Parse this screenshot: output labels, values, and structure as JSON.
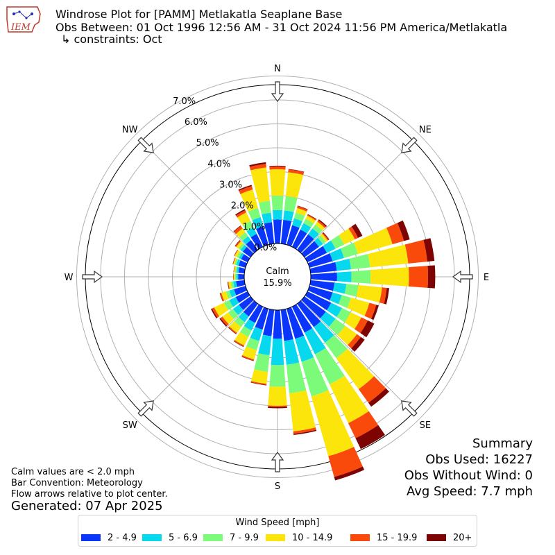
{
  "header": {
    "title": "Windrose Plot for [PAMM] Metlakatla Seaplane Base",
    "obs_between": "Obs Between: 01 Oct 1996 12:56 AM - 31 Oct 2024 11:56 PM America/Metlakatla",
    "constraints": "↳ constraints: Oct",
    "logo_text": "IEM"
  },
  "notes": {
    "calm_def": "Calm values are < 2.0 mph",
    "bar_convention": "Bar Convention: Meteorology",
    "flow_arrows": "Flow arrows relative to plot center.",
    "generated": "Generated: 07 Apr 2025"
  },
  "summary": {
    "title": "Summary",
    "obs_used": "Obs Used: 16227",
    "obs_without_wind": "Obs Without Wind: 0",
    "avg_speed": "Avg Speed: 7.7 mph"
  },
  "legend": {
    "title": "Wind Speed [mph]",
    "items": [
      {
        "label": "2 - 4.9",
        "color": "#0a35fa"
      },
      {
        "label": "5 - 6.9",
        "color": "#06d8ee"
      },
      {
        "label": "7 - 9.9",
        "color": "#7cfb7a"
      },
      {
        "label": "10 - 14.9",
        "color": "#fbe50a"
      },
      {
        "label": "15 - 19.9",
        "color": "#fa4a0b"
      },
      {
        "label": "20+",
        "color": "#7e0403"
      }
    ]
  },
  "chart_data": {
    "type": "windrose",
    "calm": {
      "label": "Calm",
      "value": "15.9%"
    },
    "radial_ticks": [
      "0.0%",
      "1.0%",
      "2.0%",
      "3.0%",
      "4.0%",
      "5.0%",
      "6.0%",
      "7.0%"
    ],
    "radial_max": 7.9,
    "grid": true,
    "directions": [
      {
        "label": "N",
        "deg": 0
      },
      {
        "label": "NE",
        "deg": 45
      },
      {
        "label": "E",
        "deg": 90
      },
      {
        "label": "SE",
        "deg": 135
      },
      {
        "label": "S",
        "deg": 180
      },
      {
        "label": "SW",
        "deg": 225
      },
      {
        "label": "W",
        "deg": 270
      },
      {
        "label": "NW",
        "deg": 315
      }
    ],
    "bin_width_deg": 10,
    "speed_bins": [
      "2 - 4.9",
      "5 - 6.9",
      "7 - 9.9",
      "10 - 14.9",
      "15 - 19.9",
      "20+"
    ],
    "colors": [
      "#0a35fa",
      "#06d8ee",
      "#7cfb7a",
      "#fbe50a",
      "#fa4a0b",
      "#7e0403"
    ],
    "bars": [
      {
        "dir": 0,
        "values": [
          1.0,
          0.4,
          0.6,
          1.1,
          0.12,
          0.03
        ]
      },
      {
        "dir": 10,
        "values": [
          1.0,
          0.4,
          0.6,
          1.0,
          0.12,
          0.02
        ]
      },
      {
        "dir": 20,
        "values": [
          0.85,
          0.3,
          0.25,
          0.2,
          0.08,
          0.02
        ]
      },
      {
        "dir": 30,
        "values": [
          0.8,
          0.3,
          0.2,
          0.15,
          0.05,
          0.02
        ]
      },
      {
        "dir": 40,
        "values": [
          0.8,
          0.3,
          0.2,
          0.15,
          0.07,
          0.05
        ]
      },
      {
        "dir": 50,
        "values": [
          0.75,
          0.2,
          0.15,
          0.1,
          0.05,
          0.03
        ]
      },
      {
        "dir": 60,
        "values": [
          0.9,
          0.4,
          0.4,
          0.5,
          0.15,
          0.2
        ]
      },
      {
        "dir": 70,
        "values": [
          1.0,
          0.5,
          0.6,
          1.5,
          0.5,
          0.25
        ]
      },
      {
        "dir": 80,
        "values": [
          1.1,
          0.6,
          0.8,
          1.6,
          0.8,
          0.3
        ]
      },
      {
        "dir": 90,
        "values": [
          1.1,
          0.6,
          0.8,
          1.6,
          0.8,
          0.3
        ]
      },
      {
        "dir": 100,
        "values": [
          1.0,
          0.5,
          0.5,
          1.0,
          0.2,
          0.1
        ]
      },
      {
        "dir": 110,
        "values": [
          1.0,
          0.4,
          0.4,
          0.8,
          0.3,
          0.1
        ]
      },
      {
        "dir": 120,
        "values": [
          1.1,
          0.5,
          0.4,
          0.5,
          0.3,
          0.3
        ]
      },
      {
        "dir": 130,
        "values": [
          1.1,
          0.5,
          0.5,
          0.6,
          0.2,
          0.2
        ]
      },
      {
        "dir": 140,
        "values": [
          1.2,
          0.8,
          0.8,
          1.6,
          0.7,
          0.2
        ]
      },
      {
        "dir": 150,
        "values": [
          1.2,
          1.0,
          1.4,
          1.8,
          0.7,
          0.5
        ]
      },
      {
        "dir": 160,
        "values": [
          1.3,
          1.0,
          1.5,
          2.6,
          0.9,
          0.15
        ]
      },
      {
        "dir": 170,
        "values": [
          1.3,
          1.0,
          1.2,
          1.6,
          0.1,
          0.05
        ]
      },
      {
        "dir": 180,
        "values": [
          1.2,
          1.1,
          0.9,
          0.8,
          0.05,
          0.05
        ]
      },
      {
        "dir": 190,
        "values": [
          1.1,
          0.8,
          0.7,
          0.5,
          0.05,
          0.02
        ]
      },
      {
        "dir": 200,
        "values": [
          0.9,
          0.5,
          0.4,
          0.4,
          0.05,
          0.02
        ]
      },
      {
        "dir": 210,
        "values": [
          0.75,
          0.35,
          0.3,
          0.4,
          0.05,
          0.02
        ]
      },
      {
        "dir": 220,
        "values": [
          0.65,
          0.3,
          0.25,
          0.3,
          0.05,
          0.02
        ]
      },
      {
        "dir": 230,
        "values": [
          0.6,
          0.3,
          0.25,
          0.3,
          0.1,
          0.05
        ]
      },
      {
        "dir": 240,
        "values": [
          0.55,
          0.3,
          0.25,
          0.45,
          0.1,
          0.05
        ]
      },
      {
        "dir": 250,
        "values": [
          0.5,
          0.2,
          0.15,
          0.2,
          0.05,
          0.02
        ]
      },
      {
        "dir": 260,
        "values": [
          0.35,
          0.12,
          0.1,
          0.1,
          0.02,
          0.02
        ]
      },
      {
        "dir": 270,
        "values": [
          0.25,
          0.08,
          0.06,
          0.05,
          0.01,
          0.01
        ]
      },
      {
        "dir": 280,
        "values": [
          0.25,
          0.08,
          0.06,
          0.05,
          0.01,
          0.01
        ]
      },
      {
        "dir": 290,
        "values": [
          0.3,
          0.1,
          0.08,
          0.05,
          0.02,
          0.01
        ]
      },
      {
        "dir": 300,
        "values": [
          0.3,
          0.1,
          0.1,
          0.1,
          0.02,
          0.01
        ]
      },
      {
        "dir": 310,
        "values": [
          0.4,
          0.12,
          0.1,
          0.12,
          0.05,
          0.02
        ]
      },
      {
        "dir": 320,
        "values": [
          0.5,
          0.2,
          0.2,
          0.2,
          0.12,
          0.03
        ]
      },
      {
        "dir": 330,
        "values": [
          0.6,
          0.3,
          0.3,
          0.4,
          0.1,
          0.05
        ]
      },
      {
        "dir": 340,
        "values": [
          0.8,
          0.4,
          0.4,
          0.8,
          0.15,
          0.05
        ]
      },
      {
        "dir": 350,
        "values": [
          0.9,
          0.4,
          0.5,
          1.4,
          0.15,
          0.07
        ]
      }
    ]
  }
}
